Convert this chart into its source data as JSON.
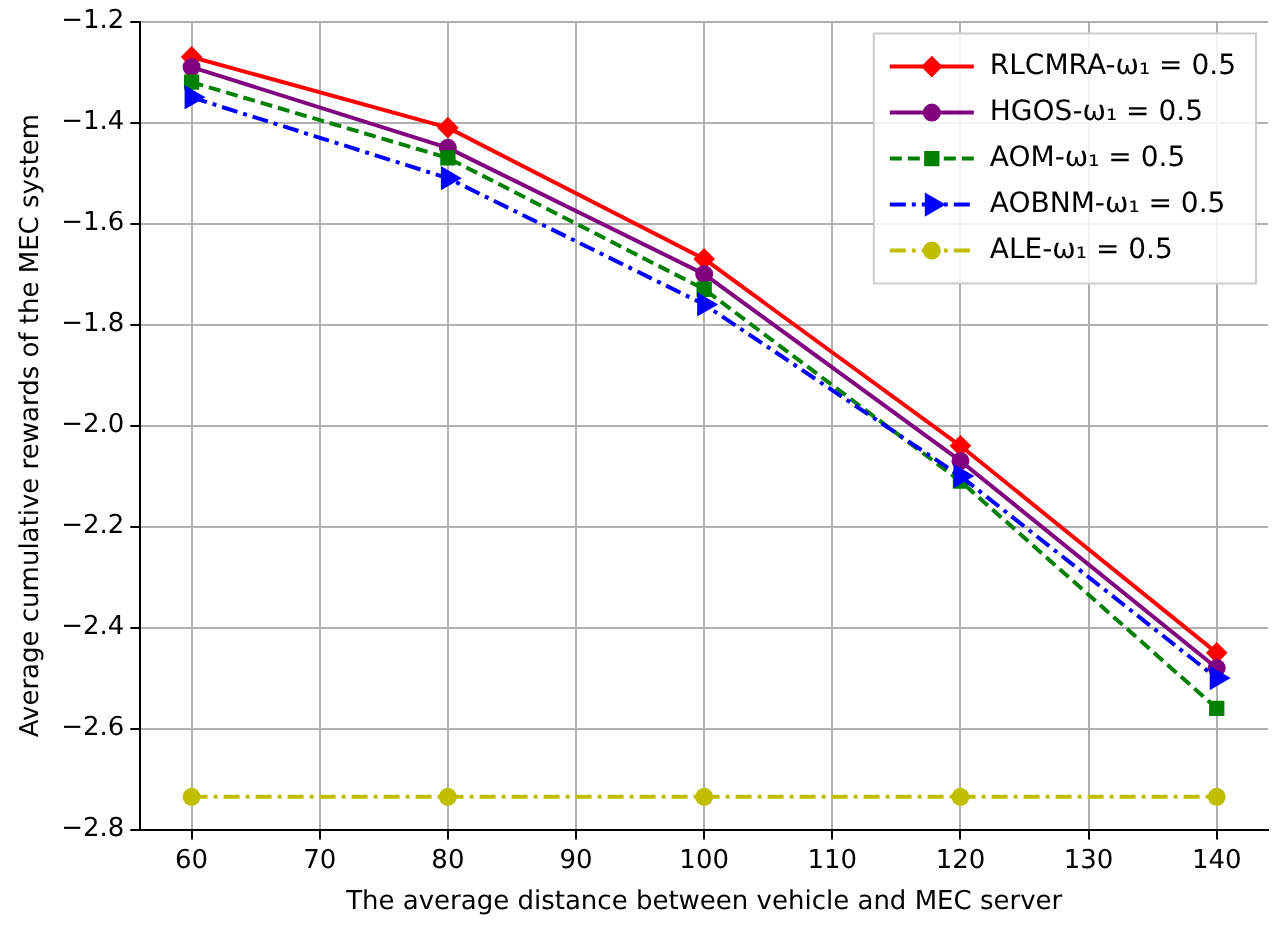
{
  "chart_data": {
    "type": "line",
    "xlabel": "The average distance between vehicle and MEC server",
    "ylabel": "Average cumulative rewards of the MEC system",
    "x": [
      60,
      80,
      100,
      120,
      140
    ],
    "xlim": [
      56,
      144
    ],
    "xticks": [
      60,
      70,
      80,
      90,
      100,
      110,
      120,
      130,
      140
    ],
    "ylim": [
      -2.8,
      -1.2
    ],
    "yticks": [
      {
        "value": -2.8,
        "label": "−2.8"
      },
      {
        "value": -2.6,
        "label": "−2.6"
      },
      {
        "value": -2.4,
        "label": "−2.4"
      },
      {
        "value": -2.2,
        "label": "−2.2"
      },
      {
        "value": -2.0,
        "label": "−2.0"
      },
      {
        "value": -1.8,
        "label": "−1.8"
      },
      {
        "value": -1.6,
        "label": "−1.6"
      },
      {
        "value": -1.4,
        "label": "−1.4"
      },
      {
        "value": -1.2,
        "label": "−1.2"
      }
    ],
    "grid": true,
    "legend": "top right",
    "series": [
      {
        "name": "RLCMRA-ω₁ = 0.5",
        "color": "#ff0000",
        "marker": "diamond",
        "line_style": "solid",
        "values": [
          -1.27,
          -1.41,
          -1.67,
          -2.04,
          -2.45
        ]
      },
      {
        "name": "HGOS-ω₁ = 0.5",
        "color": "#800080",
        "marker": "circle",
        "line_style": "solid",
        "values": [
          -1.29,
          -1.45,
          -1.7,
          -2.07,
          -2.48
        ]
      },
      {
        "name": "AOM-ω₁ = 0.5",
        "color": "#008000",
        "marker": "square",
        "line_style": "dashed",
        "values": [
          -1.32,
          -1.47,
          -1.73,
          -2.11,
          -2.56
        ]
      },
      {
        "name": "AOBNM-ω₁ = 0.5",
        "color": "#0000ff",
        "marker": "triangle",
        "line_style": "dashdot",
        "values": [
          -1.35,
          -1.51,
          -1.76,
          -2.1,
          -2.5
        ]
      },
      {
        "name": "ALE-ω₁ = 0.5",
        "color": "#bfbf00",
        "marker": "circle",
        "line_style": "dashdot",
        "values": [
          -2.735,
          -2.735,
          -2.735,
          -2.735,
          -2.735
        ]
      }
    ]
  }
}
